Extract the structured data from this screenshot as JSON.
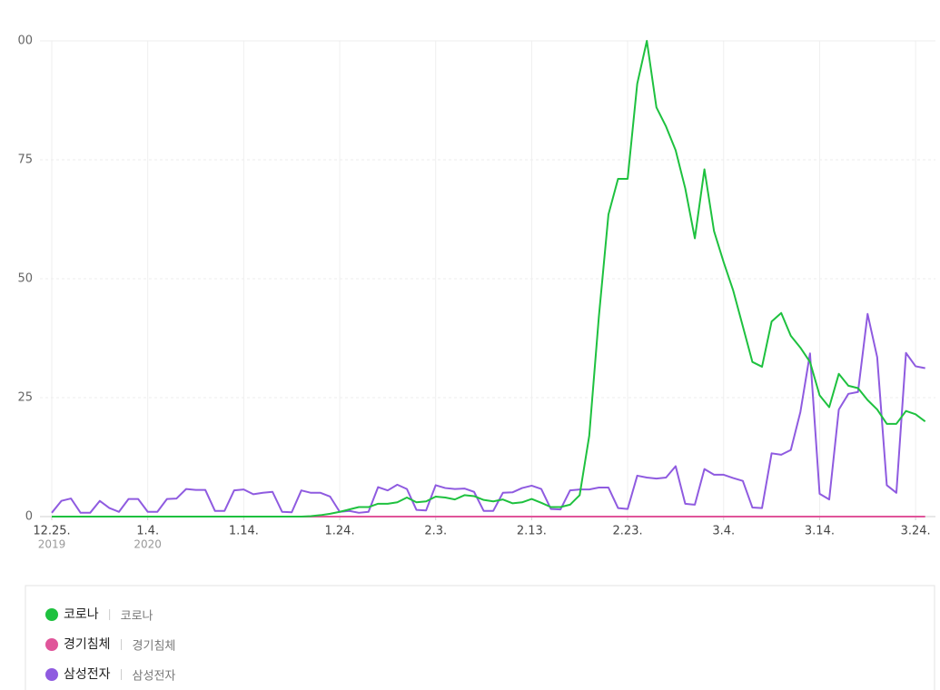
{
  "chart_data": {
    "type": "line",
    "categories": [
      "12.25.",
      null,
      null,
      null,
      null,
      null,
      null,
      null,
      null,
      null,
      "1.4.",
      null,
      null,
      null,
      null,
      null,
      null,
      null,
      null,
      null,
      "1.14.",
      null,
      null,
      null,
      null,
      null,
      null,
      null,
      null,
      null,
      "1.24.",
      null,
      null,
      null,
      null,
      null,
      null,
      null,
      null,
      null,
      "2.3.",
      null,
      null,
      null,
      null,
      null,
      null,
      null,
      null,
      null,
      "2.13.",
      null,
      null,
      null,
      null,
      null,
      null,
      null,
      null,
      null,
      "2.23.",
      null,
      null,
      null,
      null,
      null,
      null,
      null,
      null,
      null,
      "3.4.",
      null,
      null,
      null,
      null,
      null,
      null,
      null,
      null,
      null,
      "3.14.",
      null,
      null,
      null,
      null,
      null,
      null,
      null,
      null,
      null,
      "3.24.",
      null
    ],
    "year_labels": {
      "0": "2019",
      "10": "2020"
    },
    "ylim": [
      0,
      100
    ],
    "yticks": [
      0,
      25,
      50,
      75,
      {
        "value": 100,
        "label": "00"
      }
    ],
    "grid": true,
    "series": [
      {
        "name": "코로나",
        "keyword": "코로나",
        "color": "#1ec13f",
        "values": [
          0,
          0,
          0,
          0,
          0,
          0,
          0,
          0,
          0,
          0,
          0,
          0,
          0,
          0,
          0,
          0,
          0,
          0,
          0,
          0,
          0,
          0,
          0,
          0,
          0,
          0,
          0,
          0.1,
          0.3,
          0.6,
          1,
          1.5,
          2,
          2,
          2.7,
          2.7,
          3,
          4,
          3,
          3.2,
          4.2,
          4,
          3.6,
          4.5,
          4.3,
          3.5,
          3.2,
          3.6,
          2.8,
          3,
          3.7,
          2.9,
          2,
          2,
          2.5,
          4.5,
          17,
          42,
          63.5,
          71,
          71,
          91,
          100,
          86,
          82,
          77,
          69,
          58.5,
          73,
          60,
          53.5,
          47.5,
          40,
          32.5,
          31.5,
          41,
          42.8,
          38,
          35.5,
          32.5,
          25.5,
          23,
          30,
          27.5,
          27,
          24.5,
          22.5,
          19.5,
          19.5,
          22.2,
          21.5,
          20
        ]
      },
      {
        "name": "경기침체",
        "keyword": "경기침체",
        "color": "#e0559a",
        "values": [
          0,
          0,
          0,
          0,
          0,
          0,
          0,
          0,
          0,
          0,
          0,
          0,
          0,
          0,
          0,
          0,
          0,
          0,
          0,
          0,
          0,
          0,
          0,
          0,
          0,
          0,
          0,
          0,
          0,
          0,
          0,
          0,
          0,
          0,
          0,
          0,
          0,
          0,
          0,
          0,
          0,
          0,
          0,
          0,
          0,
          0,
          0,
          0,
          0,
          0,
          0,
          0,
          0,
          0,
          0,
          0,
          0,
          0,
          0,
          0,
          0,
          0,
          0,
          0,
          0,
          0,
          0,
          0,
          0,
          0,
          0,
          0,
          0,
          0,
          0,
          0,
          0,
          0,
          0,
          0,
          0,
          0,
          0,
          0,
          0,
          0,
          0,
          0,
          0,
          0,
          0,
          0
        ]
      },
      {
        "name": "삼성전자",
        "keyword": "삼성전자",
        "color": "#8f5be0",
        "values": [
          0.8,
          3.3,
          3.8,
          0.8,
          0.8,
          3.3,
          1.8,
          1,
          3.7,
          3.7,
          1,
          1,
          3.7,
          3.8,
          5.8,
          5.6,
          5.6,
          1.2,
          1.2,
          5.5,
          5.7,
          4.7,
          5,
          5.2,
          1,
          0.9,
          5.5,
          5,
          5,
          4.2,
          1,
          1.2,
          0.8,
          1,
          6.2,
          5.5,
          6.7,
          5.8,
          1.4,
          1.3,
          6.6,
          6,
          5.8,
          5.9,
          5.2,
          1.2,
          1.2,
          5,
          5.1,
          6,
          6.5,
          5.8,
          1.6,
          1.5,
          5.5,
          5.7,
          5.7,
          6.1,
          6.1,
          1.8,
          1.6,
          8.6,
          8.2,
          8,
          8.2,
          10.6,
          2.7,
          2.5,
          10,
          8.8,
          8.8,
          8.1,
          7.5,
          1.9,
          1.8,
          13.3,
          13,
          14,
          22,
          34.3,
          4.8,
          3.6,
          22.5,
          25.8,
          26.2,
          42.6,
          33.5,
          6.6,
          5,
          34.4,
          31.6,
          31.2
        ]
      }
    ]
  }
}
